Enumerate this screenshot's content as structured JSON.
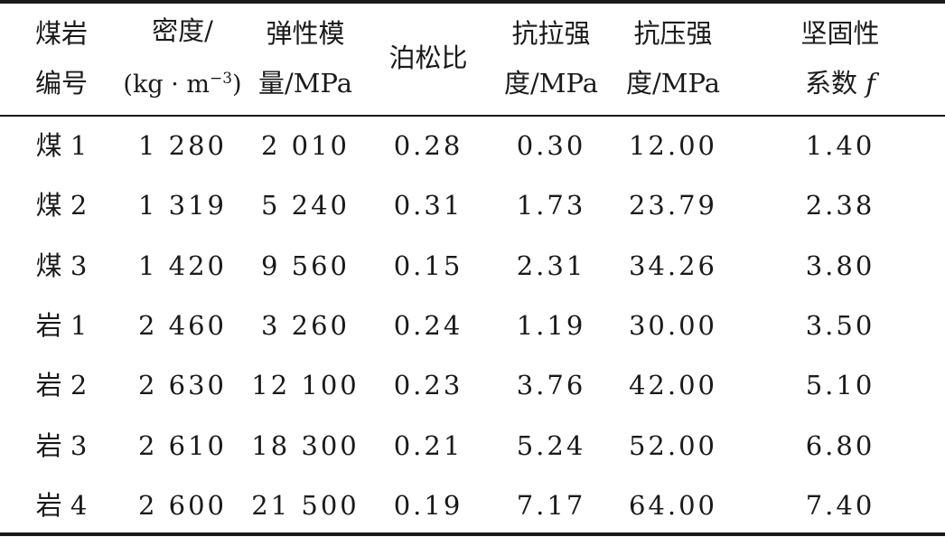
{
  "table": {
    "headers": [
      {
        "line1": "煤岩",
        "line2": "编号"
      },
      {
        "line1": "密度/",
        "line2_pre": "(kg · m",
        "line2_sup": "−3",
        "line2_post": ")"
      },
      {
        "line1": "弹性模",
        "line2": "量/MPa"
      },
      {
        "line1": "泊松比"
      },
      {
        "line1": "抗拉强",
        "line2": "度/MPa"
      },
      {
        "line1": "抗压强",
        "line2": "度/MPa"
      },
      {
        "line1": "坚固性",
        "line2_pre": "系数 ",
        "line2_ital": "f"
      }
    ],
    "rows": [
      [
        "煤 1",
        "1 280",
        "2 010",
        "0.28",
        "0.30",
        "12.00",
        "1.40"
      ],
      [
        "煤 2",
        "1 319",
        "5 240",
        "0.31",
        "1.73",
        "23.79",
        "2.38"
      ],
      [
        "煤 3",
        "1 420",
        "9 560",
        "0.15",
        "2.31",
        "34.26",
        "3.80"
      ],
      [
        "岩 1",
        "2 460",
        "3 260",
        "0.24",
        "1.19",
        "30.00",
        "3.50"
      ],
      [
        "岩 2",
        "2 630",
        "12 100",
        "0.23",
        "3.76",
        "42.00",
        "5.10"
      ],
      [
        "岩 3",
        "2 610",
        "18 300",
        "0.21",
        "5.24",
        "52.00",
        "6.80"
      ],
      [
        "岩 4",
        "2 600",
        "21 500",
        "0.19",
        "7.17",
        "64.00",
        "7.40"
      ]
    ]
  }
}
